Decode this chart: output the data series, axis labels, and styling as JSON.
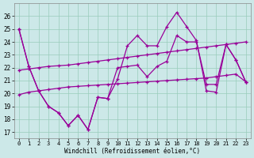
{
  "xlabel": "Windchill (Refroidissement éolien,°C)",
  "bg_color": "#cce8e8",
  "grid_color": "#99ccbb",
  "line_color": "#990099",
  "x_ticks": [
    0,
    1,
    2,
    3,
    4,
    5,
    6,
    7,
    8,
    9,
    10,
    11,
    12,
    13,
    14,
    15,
    16,
    17,
    18,
    19,
    20,
    21,
    22,
    23
  ],
  "y_ticks": [
    17,
    18,
    19,
    20,
    21,
    22,
    23,
    24,
    25,
    26
  ],
  "ylim": [
    16.5,
    27.0
  ],
  "xlim": [
    -0.5,
    23.5
  ],
  "series": [
    [
      25.0,
      22.1,
      20.2,
      19.0,
      18.5,
      17.5,
      18.3,
      17.2,
      19.7,
      19.6,
      21.1,
      23.7,
      24.5,
      23.7,
      23.7,
      25.2,
      26.3,
      25.2,
      24.1,
      20.2,
      20.1,
      23.8,
      22.6,
      20.9
    ],
    [
      25.0,
      22.1,
      20.2,
      19.0,
      18.5,
      17.5,
      18.3,
      17.2,
      19.7,
      19.6,
      22.0,
      22.1,
      22.2,
      21.3,
      22.1,
      22.5,
      24.5,
      24.0,
      24.0,
      20.7,
      20.7,
      23.8,
      22.6,
      20.9
    ],
    [
      21.8,
      21.9,
      22.0,
      22.1,
      22.15,
      22.2,
      22.3,
      22.4,
      22.5,
      22.6,
      22.7,
      22.8,
      22.9,
      23.0,
      23.1,
      23.2,
      23.3,
      23.4,
      23.5,
      23.6,
      23.7,
      23.8,
      23.9,
      24.0
    ],
    [
      19.9,
      20.1,
      20.2,
      20.3,
      20.4,
      20.5,
      20.55,
      20.6,
      20.65,
      20.7,
      20.75,
      20.8,
      20.85,
      20.9,
      20.95,
      21.0,
      21.05,
      21.1,
      21.15,
      21.2,
      21.3,
      21.4,
      21.5,
      20.9
    ]
  ]
}
